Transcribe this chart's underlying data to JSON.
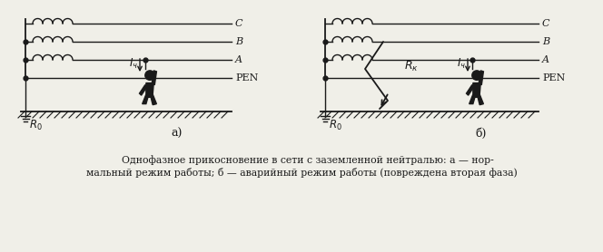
{
  "bg_color": "#f0efe8",
  "line_color": "#1a1a1a",
  "caption_line1": "    Однофазное прикосновение в сети с заземленной нейтралью: а — нор-",
  "caption_line2": "мальный режим работы; б — аварийный режим работы (повреждена вторая фаза)",
  "label_a": "а)",
  "label_b": "б)",
  "phase_labels": [
    "C",
    "B",
    "A",
    "PEN"
  ],
  "R0_label": "R_0",
  "Ich_label": "I_ч",
  "Rk_label": "R_к",
  "coil_bumps": 4,
  "coil_bump_r": 5.5
}
